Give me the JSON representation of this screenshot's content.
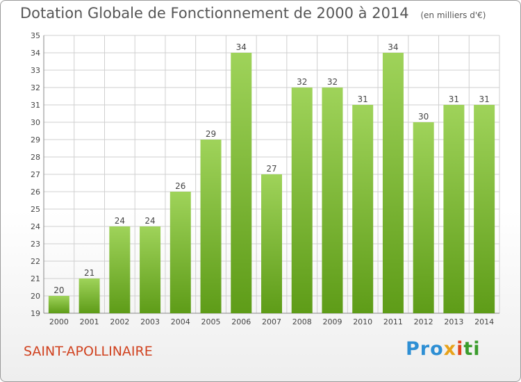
{
  "header": {
    "title": "Dotation Globale de Fonctionnement de 2000 à 2014",
    "unit": "(en milliers d'€)"
  },
  "footer": {
    "commune": "SAINT-APOLLINAIRE",
    "logo": [
      "Pro",
      "x",
      "i",
      "ti"
    ]
  },
  "colors": {
    "bar_top": "#9fd35a",
    "bar_bottom": "#5e9c18",
    "grid": "#cfcfcf",
    "title": "#555555",
    "commune": "#d0411e"
  },
  "chart_data": {
    "type": "bar",
    "title": "Dotation Globale de Fonctionnement de 2000 à 2014",
    "subtitle": "(en milliers d'€)",
    "categories": [
      "2000",
      "2001",
      "2002",
      "2003",
      "2004",
      "2005",
      "2006",
      "2007",
      "2008",
      "2009",
      "2010",
      "2011",
      "2012",
      "2013",
      "2014"
    ],
    "values": [
      20,
      21,
      24,
      24,
      26,
      29,
      34,
      27,
      32,
      32,
      31,
      34,
      30,
      31,
      31
    ],
    "ylim": [
      19,
      35
    ],
    "yticks": [
      19,
      20,
      21,
      22,
      23,
      24,
      25,
      26,
      27,
      28,
      29,
      30,
      31,
      32,
      33,
      34,
      35
    ],
    "grid": true,
    "legend": "none"
  }
}
